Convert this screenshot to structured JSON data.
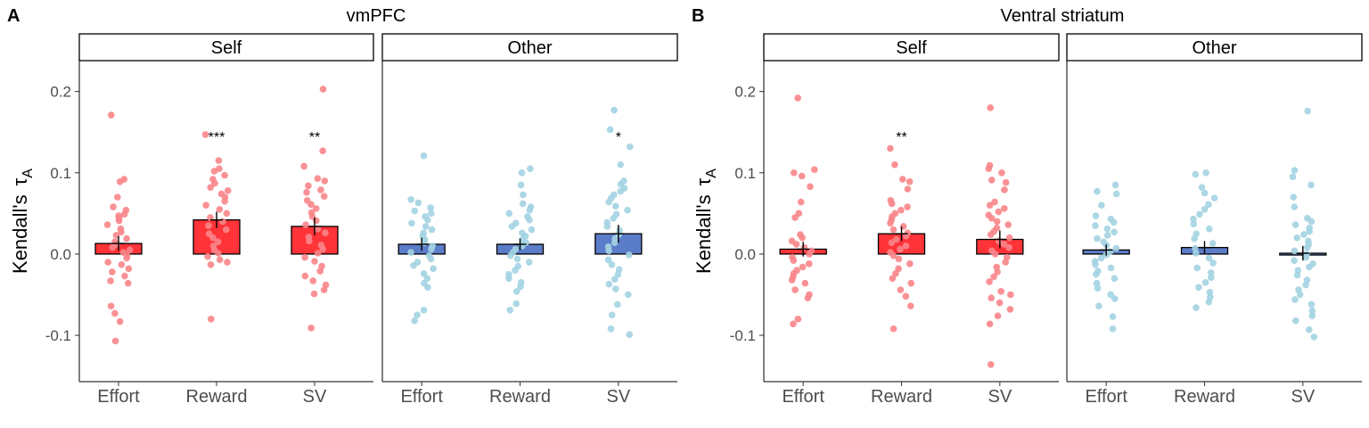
{
  "figure": {
    "colors": {
      "self_bar": "#FF3338",
      "self_point": "#F8858A",
      "other_bar": "#5B7CC8",
      "other_point": "#A3D3E2",
      "text": "#000000",
      "axis_text": "#4D4D4D"
    }
  },
  "chart_data": [
    {
      "type": "bar",
      "panel_letter": "A",
      "title": "vmPFC",
      "ylabel": "Kendall's",
      "ylabel_symbol": "τ",
      "ylabel_subscript": "A",
      "ylim": [
        -0.157,
        0.238
      ],
      "yticks": [
        -0.1,
        0.0,
        0.1,
        0.2
      ],
      "ytick_labels": [
        "-0.1",
        "0.0",
        "0.1",
        "0.2"
      ],
      "grid": false,
      "facets": [
        {
          "label": "Self",
          "group": "self",
          "categories": [
            "Effort",
            "Reward",
            "SV"
          ],
          "values": [
            0.013,
            0.042,
            0.034
          ],
          "errors": [
            0.009,
            0.01,
            0.011
          ],
          "significance": [
            "",
            "***",
            "**"
          ],
          "points": [
            [
              0.171,
              0.092,
              0.089,
              0.07,
              0.058,
              0.054,
              0.049,
              0.047,
              0.044,
              0.041,
              0.036,
              0.031,
              0.027,
              0.023,
              0.019,
              0.015,
              0.012,
              0.008,
              0.005,
              0.002,
              -0.002,
              -0.005,
              -0.01,
              -0.013,
              -0.018,
              -0.022,
              -0.027,
              -0.033,
              -0.036,
              -0.064,
              -0.073,
              -0.083,
              -0.107
            ],
            [
              0.147,
              0.115,
              0.105,
              0.102,
              0.097,
              0.092,
              0.087,
              0.082,
              0.078,
              0.074,
              0.07,
              0.065,
              0.06,
              0.055,
              0.05,
              0.045,
              0.04,
              0.035,
              0.03,
              0.025,
              0.02,
              0.015,
              0.01,
              0.005,
              0.001,
              -0.003,
              -0.007,
              -0.01,
              -0.013,
              -0.08
            ],
            [
              0.203,
              0.127,
              0.108,
              0.093,
              0.09,
              0.084,
              0.079,
              0.076,
              0.071,
              0.066,
              0.061,
              0.056,
              0.051,
              0.046,
              0.041,
              0.036,
              0.031,
              0.026,
              0.021,
              0.016,
              0.011,
              0.006,
              0.001,
              -0.004,
              -0.009,
              -0.015,
              -0.021,
              -0.027,
              -0.033,
              -0.038,
              -0.044,
              -0.049,
              -0.091
            ]
          ]
        },
        {
          "label": "Other",
          "group": "other",
          "categories": [
            "Effort",
            "Reward",
            "SV"
          ],
          "values": [
            0.012,
            0.012,
            0.025
          ],
          "errors": [
            0.008,
            0.007,
            0.011
          ],
          "significance": [
            "",
            "",
            "*"
          ],
          "points": [
            [
              0.121,
              0.067,
              0.063,
              0.057,
              0.053,
              0.05,
              0.046,
              0.042,
              0.038,
              0.034,
              0.03,
              0.026,
              0.022,
              0.018,
              0.014,
              0.01,
              0.006,
              0.002,
              -0.002,
              -0.006,
              -0.01,
              -0.014,
              -0.018,
              -0.024,
              -0.03,
              -0.036,
              -0.041,
              -0.069,
              -0.075,
              -0.082
            ],
            [
              0.105,
              0.1,
              0.085,
              0.073,
              0.062,
              0.058,
              0.054,
              0.05,
              0.046,
              0.042,
              0.038,
              0.034,
              0.03,
              0.026,
              0.022,
              0.018,
              0.014,
              0.01,
              0.006,
              0.002,
              -0.002,
              -0.006,
              -0.01,
              -0.015,
              -0.02,
              -0.025,
              -0.03,
              -0.035,
              -0.04,
              -0.046,
              -0.061,
              -0.069
            ],
            [
              0.177,
              0.153,
              0.132,
              0.11,
              0.09,
              0.086,
              0.081,
              0.077,
              0.073,
              0.069,
              0.064,
              0.059,
              0.054,
              0.049,
              0.044,
              0.039,
              0.034,
              0.029,
              0.024,
              0.019,
              0.014,
              0.009,
              0.004,
              -0.001,
              -0.007,
              -0.013,
              -0.019,
              -0.025,
              -0.031,
              -0.037,
              -0.043,
              -0.05,
              -0.062,
              -0.075,
              -0.092,
              -0.099
            ]
          ]
        }
      ]
    },
    {
      "type": "bar",
      "panel_letter": "B",
      "title": "Ventral striatum",
      "ylabel": "Kendall's",
      "ylabel_symbol": "τ",
      "ylabel_subscript": "A",
      "ylim": [
        -0.157,
        0.238
      ],
      "yticks": [
        -0.1,
        0.0,
        0.1,
        0.2
      ],
      "ytick_labels": [
        "-0.1",
        "0.0",
        "0.1",
        "0.2"
      ],
      "grid": false,
      "facets": [
        {
          "label": "Self",
          "group": "self",
          "categories": [
            "Effort",
            "Reward",
            "SV"
          ],
          "values": [
            0.006,
            0.025,
            0.018
          ],
          "errors": [
            0.009,
            0.009,
            0.011
          ],
          "significance": [
            "",
            "**",
            ""
          ],
          "points": [
            [
              0.192,
              0.104,
              0.1,
              0.096,
              0.083,
              0.064,
              0.05,
              0.045,
              0.024,
              0.02,
              0.016,
              0.012,
              0.008,
              0.004,
              0.0,
              -0.004,
              -0.008,
              -0.012,
              -0.016,
              -0.02,
              -0.024,
              -0.028,
              -0.032,
              -0.036,
              -0.044,
              -0.05,
              -0.054,
              -0.08,
              -0.086
            ],
            [
              0.13,
              0.11,
              0.092,
              0.089,
              0.08,
              0.066,
              0.062,
              0.058,
              0.054,
              0.05,
              0.046,
              0.042,
              0.038,
              0.034,
              0.03,
              0.026,
              0.022,
              0.018,
              0.014,
              0.01,
              0.006,
              0.002,
              -0.002,
              -0.006,
              -0.012,
              -0.018,
              -0.024,
              -0.03,
              -0.036,
              -0.044,
              -0.052,
              -0.064,
              -0.092
            ],
            [
              0.18,
              0.109,
              0.105,
              0.1,
              0.091,
              0.088,
              0.079,
              0.064,
              0.06,
              0.056,
              0.052,
              0.048,
              0.044,
              0.04,
              0.036,
              0.032,
              0.028,
              0.024,
              0.02,
              0.016,
              0.012,
              0.008,
              0.004,
              0.0,
              -0.004,
              -0.01,
              -0.016,
              -0.022,
              -0.028,
              -0.034,
              -0.046,
              -0.05,
              -0.054,
              -0.06,
              -0.068,
              -0.076,
              -0.086,
              -0.136
            ]
          ]
        },
        {
          "label": "Other",
          "group": "other",
          "categories": [
            "Effort",
            "Reward",
            "SV"
          ],
          "values": [
            0.005,
            0.008,
            0.001
          ],
          "errors": [
            0.007,
            0.008,
            0.009
          ],
          "significance": [
            "",
            "",
            ""
          ],
          "points": [
            [
              0.085,
              0.077,
              0.074,
              0.06,
              0.047,
              0.043,
              0.039,
              0.035,
              0.031,
              0.027,
              0.023,
              0.019,
              0.015,
              0.011,
              0.007,
              0.003,
              -0.001,
              -0.005,
              -0.009,
              -0.013,
              -0.017,
              -0.021,
              -0.025,
              -0.03,
              -0.036,
              -0.042,
              -0.05,
              -0.055,
              -0.064,
              -0.077,
              -0.092
            ],
            [
              0.1,
              0.098,
              0.082,
              0.075,
              0.069,
              0.061,
              0.055,
              0.049,
              0.043,
              0.037,
              0.031,
              0.025,
              0.019,
              0.013,
              0.007,
              0.001,
              -0.005,
              -0.011,
              -0.017,
              -0.023,
              -0.029,
              -0.035,
              -0.041,
              -0.047,
              -0.053,
              -0.059,
              -0.066
            ],
            [
              0.176,
              0.103,
              0.095,
              0.085,
              0.07,
              0.058,
              0.044,
              0.04,
              0.036,
              0.032,
              0.028,
              0.024,
              0.02,
              0.016,
              0.012,
              0.008,
              0.004,
              0.0,
              -0.004,
              -0.008,
              -0.012,
              -0.016,
              -0.02,
              -0.026,
              -0.032,
              -0.038,
              -0.044,
              -0.05,
              -0.056,
              -0.062,
              -0.07,
              -0.076,
              -0.082,
              -0.093,
              -0.102
            ]
          ]
        }
      ]
    }
  ]
}
